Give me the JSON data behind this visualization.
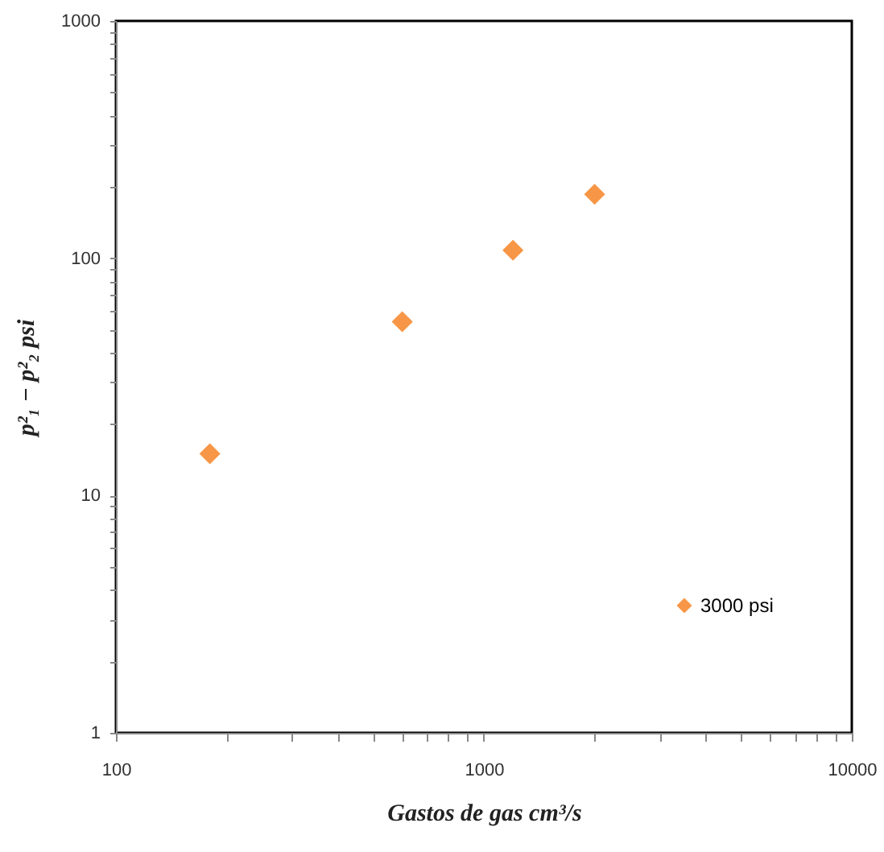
{
  "chart_data": {
    "type": "scatter",
    "xlabel": "Gastos de gas cm³/s",
    "ylabel": "p²₁ − p²₂   psi",
    "log": "xy",
    "grid": false,
    "legend": "bottom right",
    "marker": "diamond",
    "x": [
      180,
      600,
      1200,
      2000
    ],
    "series": [
      {
        "name": "3000      psi",
        "color": "#f79646",
        "values": [
          15,
          54,
          108,
          186
        ]
      }
    ],
    "xlim": [
      100,
      10000
    ],
    "xticks": [
      100,
      {
        "value": 200,
        "label": null
      },
      {
        "value": 300,
        "label": null
      },
      {
        "value": 400,
        "label": null
      },
      {
        "value": 500,
        "label": null
      },
      {
        "value": 600,
        "label": null
      },
      {
        "value": 700,
        "label": null
      },
      {
        "value": 800,
        "label": null
      },
      {
        "value": 900,
        "label": null
      },
      1000,
      {
        "value": 2000,
        "label": null
      },
      {
        "value": 3000,
        "label": null
      },
      {
        "value": 4000,
        "label": null
      },
      {
        "value": 5000,
        "label": null
      },
      {
        "value": 6000,
        "label": null
      },
      {
        "value": 7000,
        "label": null
      },
      {
        "value": 8000,
        "label": null
      },
      {
        "value": 9000,
        "label": null
      },
      10000
    ],
    "ylim": [
      1,
      1000
    ],
    "yticks": [
      1,
      {
        "value": 2,
        "label": null
      },
      {
        "value": 3,
        "label": null
      },
      {
        "value": 4,
        "label": null
      },
      {
        "value": 5,
        "label": null
      },
      {
        "value": 6,
        "label": null
      },
      {
        "value": 7,
        "label": null
      },
      {
        "value": 8,
        "label": null
      },
      {
        "value": 9,
        "label": null
      },
      10,
      {
        "value": 20,
        "label": null
      },
      {
        "value": 30,
        "label": null
      },
      {
        "value": 40,
        "label": null
      },
      {
        "value": 50,
        "label": null
      },
      {
        "value": 60,
        "label": null
      },
      {
        "value": 70,
        "label": null
      },
      {
        "value": 80,
        "label": null
      },
      {
        "value": 90,
        "label": null
      },
      100,
      {
        "value": 200,
        "label": null
      },
      {
        "value": 300,
        "label": null
      },
      {
        "value": 400,
        "label": null
      },
      {
        "value": 500,
        "label": null
      },
      {
        "value": 600,
        "label": null
      },
      {
        "value": 700,
        "label": null
      },
      {
        "value": 800,
        "label": null
      },
      {
        "value": 900,
        "label": null
      },
      1000
    ]
  }
}
